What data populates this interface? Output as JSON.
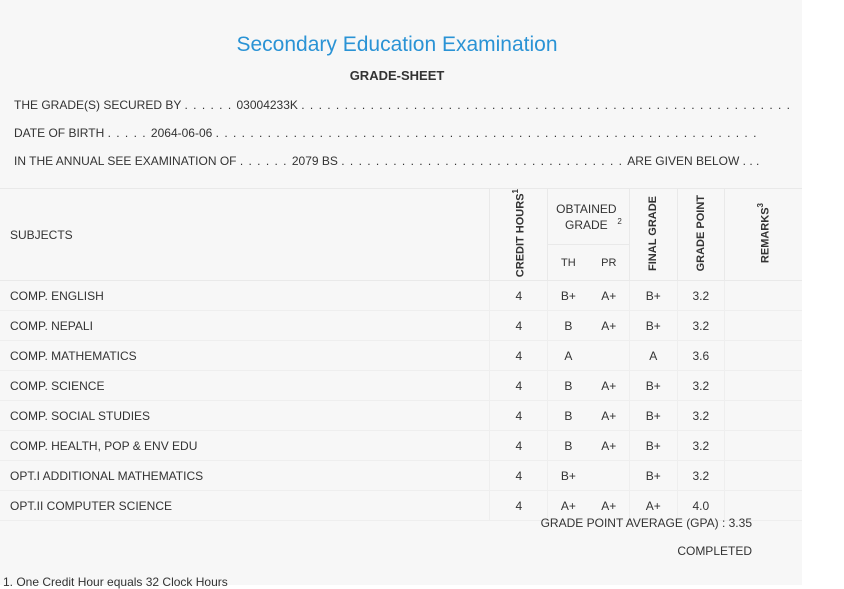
{
  "header": {
    "title": "Secondary Education Examination",
    "subtitle": "GRADE-SHEET"
  },
  "info": {
    "line1_label": "THE GRADE(S) SECURED BY",
    "line1_value": "03004233K",
    "line2_label": "DATE OF BIRTH",
    "line2_value": "2064-06-06",
    "line3_label": "IN THE ANNUAL SEE EXAMINATION OF",
    "line3_value": "2079 BS",
    "line3_suffix": "ARE GIVEN BELOW . . ."
  },
  "table": {
    "headers": {
      "subjects": "SUBJECTS",
      "credit_hours": "CREDIT HOURS",
      "credit_sup": "1",
      "obtained_grade": "OBTAINED GRADE",
      "obtained_sup": "2",
      "th": "TH",
      "pr": "PR",
      "final_grade": "FINAL GRADE",
      "grade_point": "GRADE POINT",
      "remarks": "REMARKS",
      "remarks_sup": "3"
    },
    "rows": [
      {
        "subject": "COMP. ENGLISH",
        "credit": "4",
        "th": "B+",
        "pr": "A+",
        "final": "B+",
        "gp": "3.2",
        "remarks": ""
      },
      {
        "subject": "COMP. NEPALI",
        "credit": "4",
        "th": "B",
        "pr": "A+",
        "final": "B+",
        "gp": "3.2",
        "remarks": ""
      },
      {
        "subject": "COMP. MATHEMATICS",
        "credit": "4",
        "th": "A",
        "pr": "",
        "final": "A",
        "gp": "3.6",
        "remarks": ""
      },
      {
        "subject": "COMP. SCIENCE",
        "credit": "4",
        "th": "B",
        "pr": "A+",
        "final": "B+",
        "gp": "3.2",
        "remarks": ""
      },
      {
        "subject": "COMP. SOCIAL STUDIES",
        "credit": "4",
        "th": "B",
        "pr": "A+",
        "final": "B+",
        "gp": "3.2",
        "remarks": ""
      },
      {
        "subject": "COMP. HEALTH, POP & ENV EDU",
        "credit": "4",
        "th": "B",
        "pr": "A+",
        "final": "B+",
        "gp": "3.2",
        "remarks": ""
      },
      {
        "subject": "OPT.I ADDITIONAL MATHEMATICS",
        "credit": "4",
        "th": "B+",
        "pr": "",
        "final": "B+",
        "gp": "3.2",
        "remarks": ""
      },
      {
        "subject": "OPT.II COMPUTER SCIENCE",
        "credit": "4",
        "th": "A+",
        "pr": "A+",
        "final": "A+",
        "gp": "4.0",
        "remarks": ""
      }
    ]
  },
  "summary": {
    "gpa_text": "GRADE POINT AVERAGE (GPA) : 3.35",
    "status": "COMPLETED"
  },
  "footnote": "1. One Credit Hour equals 32 Clock Hours",
  "colors": {
    "title": "#2a93d5",
    "background": "#f7f7f7"
  }
}
